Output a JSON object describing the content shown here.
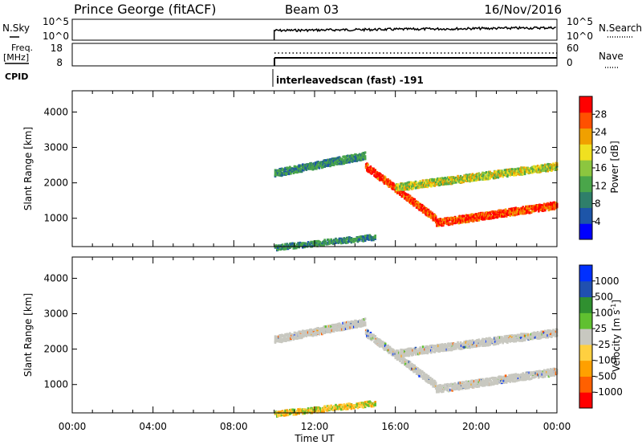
{
  "header": {
    "station": "Prince George (fitACF)",
    "beam": "Beam 03",
    "date": "16/Nov/2016"
  },
  "top_panels": {
    "nsky_label": "N.Sky",
    "nsky_ticks": [
      "10^5",
      "10^0"
    ],
    "nsearch_label": "N.Search",
    "nsearch_ticks": [
      "10^5",
      "10^0"
    ],
    "freq_label": "Freq.",
    "freq_unit": "[MHz]",
    "freq_ticks": [
      "18",
      "8"
    ],
    "nave_label": "Nave",
    "nave_ticks": [
      "60",
      "0"
    ],
    "cpid_label": "CPID",
    "cpid_value": "interleavedscan (fast) -191"
  },
  "colors": {
    "power_scale": [
      "#0000ff",
      "#1d55a8",
      "#2f7f6a",
      "#4aa64a",
      "#8cc63f",
      "#f0e020",
      "#f0a000",
      "#ff5000",
      "#ff0000"
    ],
    "velocity_scale": [
      "#ff0000",
      "#ff6000",
      "#ffa000",
      "#ffd040",
      "#c8c8c0",
      "#60c030",
      "#309030",
      "#2050b0",
      "#0030ff"
    ],
    "ground_scatter": "#c8c8c0"
  },
  "chart_data": [
    {
      "type": "heatmap",
      "name": "power",
      "ylabel": "Slant Range [km]",
      "yticks": [
        "1000",
        "2000",
        "3000",
        "4000"
      ],
      "ylim": [
        200,
        4600
      ],
      "xlim": [
        0,
        24
      ],
      "colorbar": {
        "label": "Power [dB]",
        "ticks": [
          "4",
          "8",
          "12",
          "16",
          "20",
          "24",
          "28"
        ],
        "range": [
          0,
          32
        ]
      },
      "data_start_hour": 10.0,
      "scatter_bands": [
        {
          "desc": "F-region early",
          "x": [
            10.0,
            14.5
          ],
          "range_km": [
            2300,
            2800
          ],
          "level": "low"
        },
        {
          "desc": "descending main echo",
          "x": [
            14.5,
            18.0
          ],
          "range_km": [
            2500,
            1000
          ],
          "level": "high"
        },
        {
          "desc": "main echo late",
          "x": [
            18.0,
            24.0
          ],
          "range_km": [
            900,
            1400
          ],
          "level": "high"
        },
        {
          "desc": "second hop",
          "x": [
            16.0,
            24.0
          ],
          "range_km": [
            1900,
            2500
          ],
          "level": "mid"
        },
        {
          "desc": "near range E",
          "x": [
            10.0,
            15.0
          ],
          "range_km": [
            200,
            500
          ],
          "level": "low"
        }
      ]
    },
    {
      "type": "heatmap",
      "name": "velocity",
      "ylabel": "Slant Range [km]",
      "yticks": [
        "1000",
        "2000",
        "3000",
        "4000"
      ],
      "ylim": [
        200,
        4600
      ],
      "xlim": [
        0,
        24
      ],
      "xlabel": "Time UT",
      "xticks": [
        "00:00",
        "04:00",
        "08:00",
        "12:00",
        "16:00",
        "20:00",
        "00:00"
      ],
      "colorbar": {
        "label": "Velocity [m s",
        "label_exp": "-1",
        "label_end": "]",
        "ticks": [
          "1000",
          "500",
          "100",
          "25",
          "-25",
          "-100",
          "-500",
          "-1000"
        ]
      }
    }
  ]
}
